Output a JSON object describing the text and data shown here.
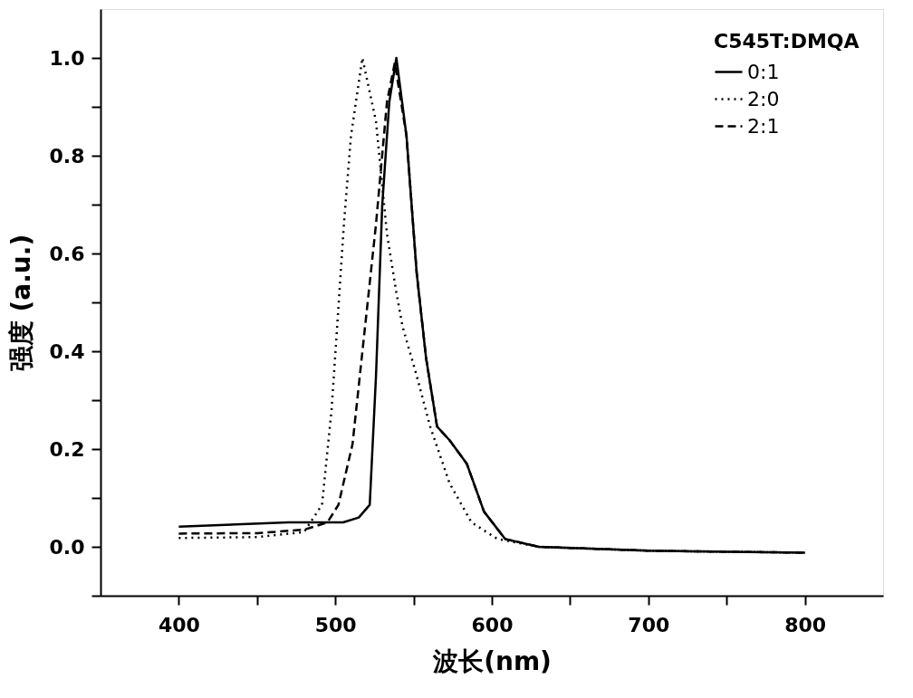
{
  "chart_data": {
    "type": "line",
    "xlabel": "波长(nm)",
    "ylabel": "强度 (a.u.)",
    "legend_title": "C545T:DMQA",
    "legend": "top right",
    "xlim": [
      350,
      850
    ],
    "ylim": [
      -0.1,
      1.1
    ],
    "xticks": [
      400,
      {
        "value": 450,
        "label": null
      },
      500,
      {
        "value": 550,
        "label": null
      },
      600,
      {
        "value": 650,
        "label": null
      },
      700,
      {
        "value": 750,
        "label": null
      },
      800
    ],
    "yticks": [
      {
        "value": -0.1,
        "label": null
      },
      {
        "value": 0,
        "label": "0.0"
      },
      {
        "value": 0.1,
        "label": null
      },
      0.2,
      {
        "value": 0.3,
        "label": null
      },
      0.4,
      {
        "value": 0.5,
        "label": null
      },
      0.6,
      {
        "value": 0.7,
        "label": null
      },
      0.8,
      {
        "value": 0.9,
        "label": null
      },
      {
        "value": 1,
        "label": "1.0"
      }
    ],
    "grid": false,
    "series": [
      {
        "name": "0:1",
        "color": "#000000",
        "line_style": "solid",
        "x": [
          400,
          430,
          470,
          490,
          505,
          515,
          522,
          526,
          530,
          534.5,
          539,
          545.5,
          552,
          558,
          565,
          573,
          584,
          595,
          608.5,
          630,
          700,
          800
        ],
        "values": [
          0.041,
          0.045,
          0.05,
          0.05,
          0.05,
          0.06,
          0.086,
          0.35,
          0.7,
          0.91,
          1.0,
          0.84,
          0.56,
          0.386,
          0.246,
          0.218,
          0.17,
          0.072,
          0.016,
          0.0,
          -0.008,
          -0.012
        ]
      },
      {
        "name": "2:0",
        "color": "#000000",
        "line_style": "dotted",
        "x": [
          400,
          450,
          480,
          491.5,
          497.6,
          502,
          505.5,
          510,
          517.3,
          526,
          533,
          539,
          543,
          552,
          560.6,
          573,
          587,
          603.6,
          630,
          700,
          800
        ],
        "values": [
          0.018,
          0.02,
          0.03,
          0.086,
          0.28,
          0.49,
          0.66,
          0.84,
          1.0,
          0.87,
          0.64,
          0.52,
          0.45,
          0.35,
          0.246,
          0.13,
          0.05,
          0.016,
          0.0,
          -0.008,
          -0.012
        ]
      },
      {
        "name": "2:1",
        "color": "#000000",
        "line_style": "dashed",
        "x": [
          400,
          450,
          480,
          495,
          502,
          511,
          519,
          526,
          533,
          538,
          545.5,
          552,
          558,
          565,
          573,
          584,
          595,
          608.5,
          630,
          700,
          800
        ],
        "values": [
          0.027,
          0.028,
          0.035,
          0.05,
          0.086,
          0.21,
          0.45,
          0.66,
          0.91,
          0.99,
          0.84,
          0.56,
          0.386,
          0.246,
          0.218,
          0.17,
          0.072,
          0.016,
          0.0,
          -0.008,
          -0.012
        ]
      }
    ]
  }
}
